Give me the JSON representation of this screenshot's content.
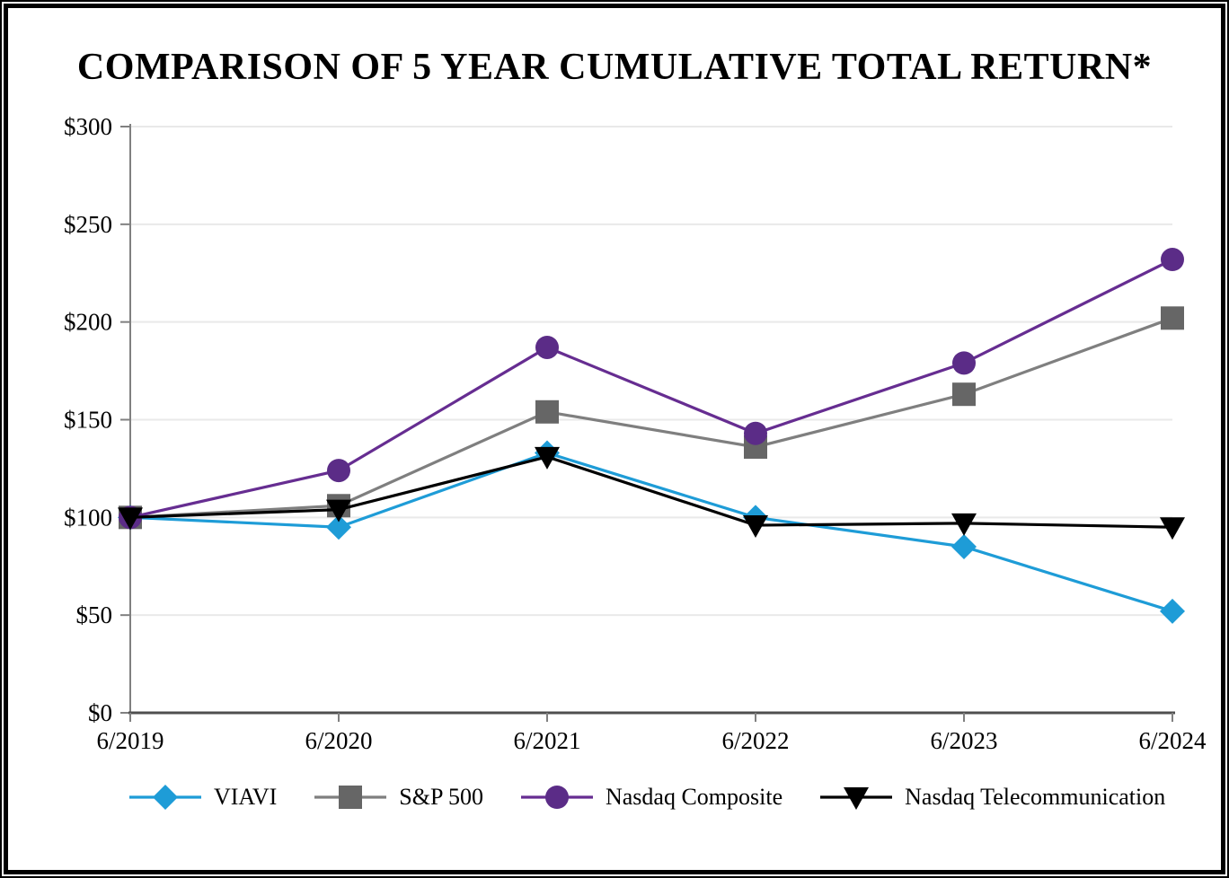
{
  "page_title": "COMPARISON OF 5 YEAR CUMULATIVE TOTAL RETURN*",
  "chart_data": {
    "type": "line",
    "title": "COMPARISON OF 5 YEAR CUMULATIVE TOTAL RETURN*",
    "xlabel": "",
    "ylabel": "",
    "categories": [
      "6/2019",
      "6/2020",
      "6/2021",
      "6/2022",
      "6/2023",
      "6/2024"
    ],
    "series": [
      {
        "name": "VIAVI",
        "marker": "diamond",
        "color": "#1E9CD7",
        "line_color": "#1E9CD7",
        "values": [
          100,
          95,
          133,
          100,
          85,
          52
        ]
      },
      {
        "name": "S&P 500",
        "marker": "square",
        "color": "#666666",
        "line_color": "#7F7F7F",
        "values": [
          100,
          106,
          154,
          136,
          163,
          202
        ]
      },
      {
        "name": "Nasdaq Composite",
        "marker": "circle",
        "color": "#5B2C87",
        "line_color": "#662D91",
        "values": [
          100,
          124,
          187,
          143,
          179,
          232
        ]
      },
      {
        "name": "Nasdaq Telecommunication",
        "marker": "triangle-down",
        "color": "#000000",
        "line_color": "#000000",
        "values": [
          100,
          104,
          131,
          96,
          97,
          95
        ]
      }
    ],
    "ylim": [
      0,
      300
    ],
    "ytick_step": 50,
    "ytick_labels": [
      "$0",
      "$50",
      "$100",
      "$150",
      "$200",
      "$250",
      "$300"
    ],
    "grid": true,
    "legend_position": "bottom",
    "colors": {
      "gridline": "#E9E9E9",
      "y_axis": "#808080",
      "x_axis": "#4F4F4F",
      "tick": "#808080",
      "background": "#FFFFFF"
    }
  }
}
